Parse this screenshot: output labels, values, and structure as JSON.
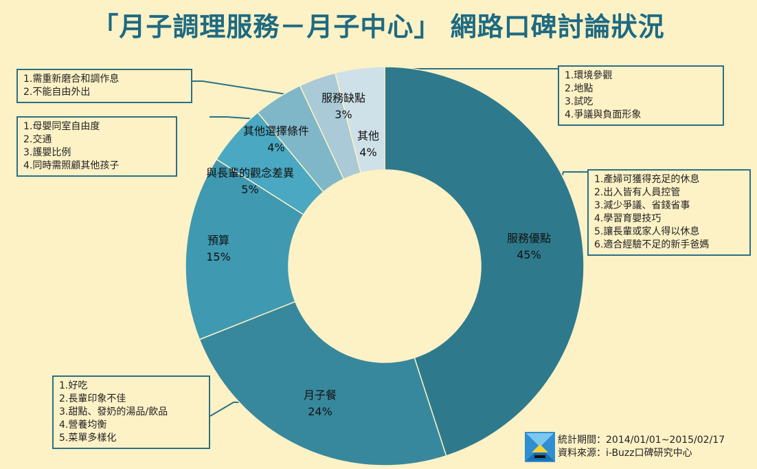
{
  "title": "「月子調理服務－月子中心」 網路口碑討論狀況",
  "chart_data": {
    "type": "pie",
    "donut": true,
    "categories": [
      "服務優點",
      "月子餐",
      "預算",
      "與長輩的觀念差異",
      "其他選擇條件",
      "服務缺點",
      "其他"
    ],
    "values": [
      45,
      24,
      15,
      5,
      4,
      3,
      4
    ],
    "value_labels": [
      "45%",
      "24%",
      "15%",
      "5%",
      "4%",
      "3%",
      "4%"
    ],
    "colors": [
      "#2e7a8c",
      "#37889c",
      "#3f99b1",
      "#4aa8c2",
      "#7fb7c8",
      "#a9cad6",
      "#cfe1e8"
    ]
  },
  "notes": {
    "advantages": [
      "1.產婦可獲得充足的休息",
      "2.出入皆有人員控管",
      "3.減少爭議、省錢省事",
      "4.學習育嬰技巧",
      "5.讓長輩或家人得以休息",
      "6.適合經驗不足的新手爸媽"
    ],
    "meals": [
      "1.好吃",
      "2.長輩印象不佳",
      "3.甜點、發奶的湯品/飲品",
      "4.營養均衡",
      "5.菜單多樣化"
    ],
    "other_conditions": [
      "1.母嬰同室自由度",
      "2.交通",
      "3.護嬰比例",
      "4.同時需照顧其他孩子"
    ],
    "disadvantages": [
      "1.需重新磨合和調作息",
      "2.不能自由外出"
    ],
    "others": [
      "1.環境參觀",
      "2.地點",
      "3.試吃",
      "4.爭議與負面形象"
    ]
  },
  "footer": {
    "period": "統計期間：2014/01/01~2015/02/17",
    "source": "資料來源：i-Buzz口碑研究中心"
  }
}
